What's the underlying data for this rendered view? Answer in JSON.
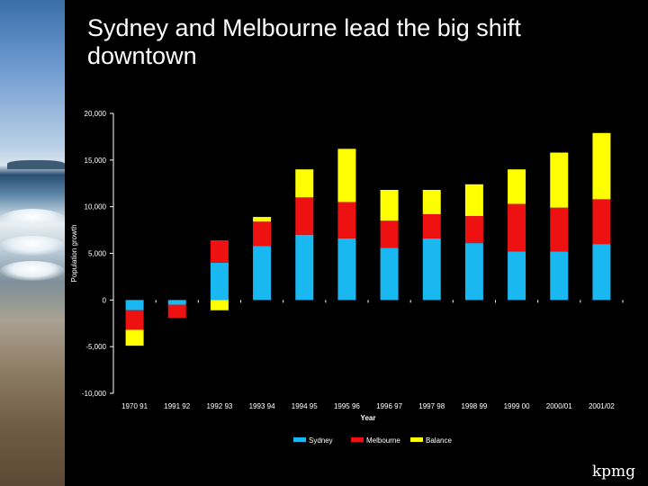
{
  "slide": {
    "title": "Sydney and Melbourne lead the big shift downtown",
    "logo_text": "kpmg"
  },
  "background": {
    "photo": "beach-surf-photo"
  },
  "chart_data": {
    "type": "bar",
    "stacked": true,
    "categories": [
      "1970 91",
      "1991 92",
      "1992 93",
      "1993 94",
      "1994 95",
      "1995 96",
      "1996 97",
      "1997 98",
      "1998 99",
      "1999 00",
      "2000/01",
      "2001/02"
    ],
    "series": [
      {
        "name": "Sydney",
        "color": "#1ab8f0",
        "values": [
          -1100,
          -500,
          4000,
          5800,
          7000,
          6600,
          5600,
          6600,
          6100,
          5200,
          5200,
          6000
        ]
      },
      {
        "name": "Melbourne",
        "color": "#ee1111",
        "values": [
          -2100,
          -1400,
          2400,
          2600,
          4000,
          3900,
          2900,
          2600,
          2900,
          5100,
          4700,
          4800
        ]
      },
      {
        "name": "Balance",
        "color": "#ffff00",
        "values": [
          -1700,
          0,
          -1100,
          500,
          3000,
          5700,
          3300,
          2600,
          3400,
          3700,
          5900,
          7100
        ]
      }
    ],
    "ylabel": "Population growth",
    "xlabel": "Year",
    "ylim": [
      -10000,
      20000
    ],
    "yticks": [
      20000,
      15000,
      10000,
      5000,
      0,
      -5000,
      -10000
    ],
    "ytick_labels": [
      "20,000",
      "15,000",
      "10,000",
      "5,000",
      "0",
      "-5,000",
      "-10,000"
    ],
    "grid": false,
    "legend_position": "bottom",
    "axis_color": "#ffffff"
  }
}
